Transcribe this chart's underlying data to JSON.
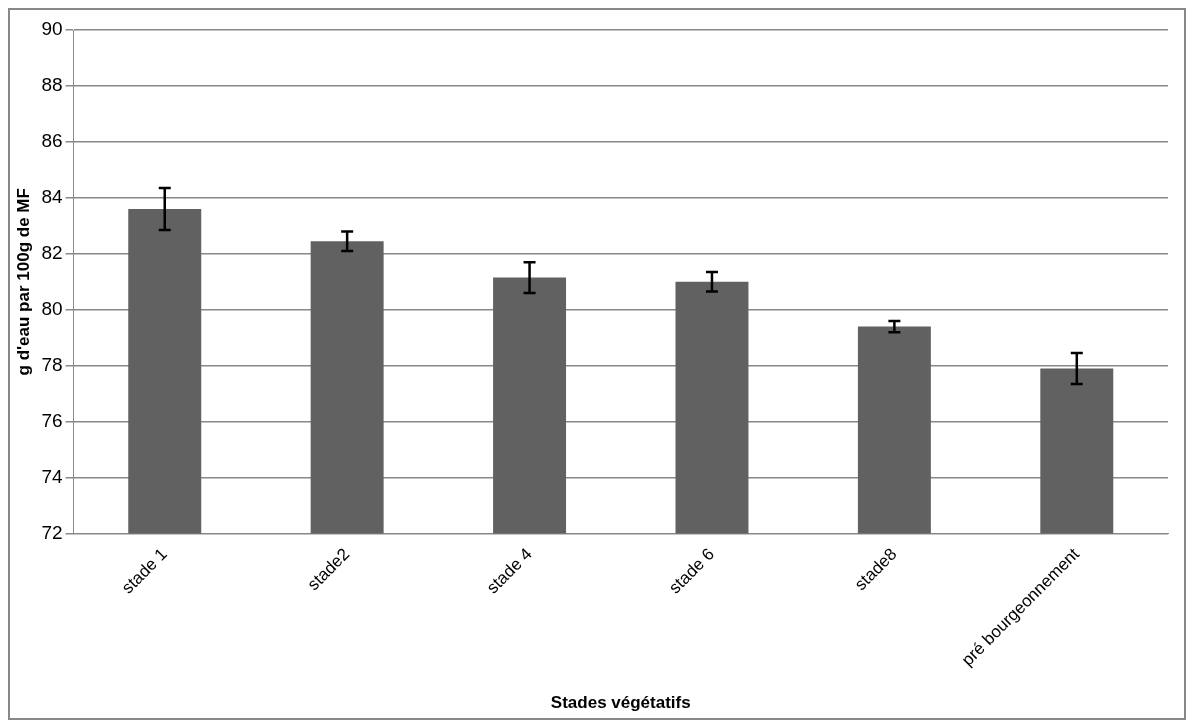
{
  "chart_data": {
    "type": "bar",
    "xlabel": "Stades végétatifs",
    "ylabel": "g d'eau par 100g de MF",
    "categories": [
      "stade 1",
      "stade2",
      "stade 4",
      "stade 6",
      "stade8",
      "pré bourgeonnement"
    ],
    "values": [
      83.6,
      82.45,
      81.15,
      81.0,
      79.4,
      77.9
    ],
    "errors": [
      0.75,
      0.35,
      0.55,
      0.35,
      0.2,
      0.55
    ],
    "color": "#616161",
    "ylim": [
      72,
      90
    ],
    "yticks": [
      72,
      74,
      76,
      78,
      80,
      82,
      84,
      86,
      88,
      90
    ],
    "grid": "y",
    "legend": false
  }
}
